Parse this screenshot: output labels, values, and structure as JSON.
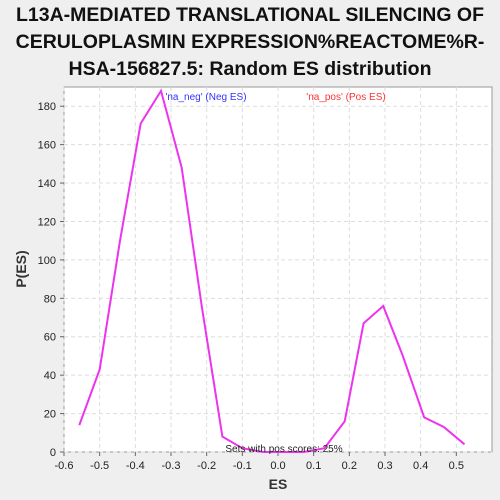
{
  "title_lines": [
    "L13A-MEDIATED TRANSLATIONAL SILENCING OF",
    "CERULOPLASMIN EXPRESSION%REACTOME%R-",
    "HSA-156827.5: Random ES distribution"
  ],
  "chart_data": {
    "type": "line",
    "xlabel": "ES",
    "ylabel": "P(ES)",
    "xlim": [
      -0.6,
      0.6
    ],
    "ylim": [
      0,
      190
    ],
    "xticks": [
      -0.6,
      -0.5,
      -0.4,
      -0.3,
      -0.2,
      -0.1,
      0.0,
      0.1,
      0.2,
      0.3,
      0.4,
      0.5
    ],
    "xtick_labels": [
      "-0.6",
      "-0.5",
      "-0.4",
      "-0.3",
      "-0.2",
      "-0.1",
      "0.0",
      "0.1",
      "0.2",
      "0.3",
      "0.4",
      "0.5"
    ],
    "yticks": [
      0,
      20,
      40,
      60,
      80,
      100,
      120,
      140,
      160,
      180
    ],
    "ytick_labels": [
      "0",
      "20",
      "40",
      "60",
      "80",
      "100",
      "120",
      "140",
      "160",
      "180"
    ],
    "grid": true,
    "legend": [
      {
        "text": "'na_neg' (Neg ES)",
        "color": "#3333ff"
      },
      {
        "text": "'na_pos' (Pos ES)",
        "color": "#ff3333"
      }
    ],
    "annotation": "Sets with pos scores: 25%",
    "series": [
      {
        "color": "#ee33ee",
        "x": [
          -0.557,
          -0.5,
          -0.443,
          -0.385,
          -0.328,
          -0.27,
          -0.213,
          -0.156,
          -0.1,
          -0.042,
          0.015,
          0.072,
          0.13,
          0.187,
          0.24,
          0.295,
          0.35,
          0.41,
          0.465,
          0.523
        ],
        "y": [
          14,
          43,
          110,
          171,
          188,
          148,
          75,
          8,
          2,
          0,
          0,
          0,
          2,
          16,
          67,
          76,
          50,
          18,
          13,
          4
        ]
      }
    ]
  }
}
